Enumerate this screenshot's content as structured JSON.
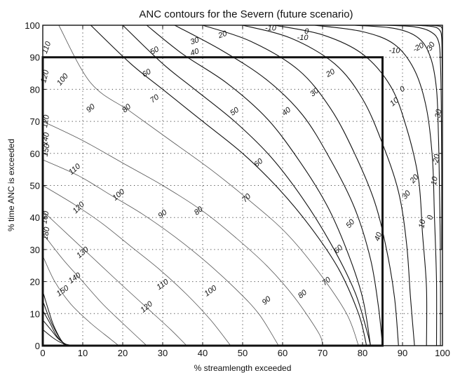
{
  "chart_data": {
    "type": "contour",
    "title": "ANC contours for the Severn (future scenario)",
    "xlabel": "% streamlength exceeded",
    "ylabel": "% time ANC is exceeded",
    "xlim": [
      0,
      100
    ],
    "ylim": [
      0,
      100
    ],
    "x_ticks": [
      "0",
      "10",
      "20",
      "30",
      "40",
      "50",
      "60",
      "70",
      "80",
      "90",
      "100"
    ],
    "y_ticks": [
      "0",
      "10",
      "20",
      "30",
      "40",
      "50",
      "60",
      "70",
      "80",
      "90",
      "100"
    ],
    "grid": true,
    "grid_style": "dotted",
    "highlight_box": {
      "x": [
        0,
        85
      ],
      "y": [
        0,
        90
      ]
    },
    "contours": [
      {
        "level": 150,
        "points": [
          [
            0,
            28
          ],
          [
            3,
            20
          ],
          [
            7,
            13
          ],
          [
            12,
            7
          ],
          [
            17,
            2
          ],
          [
            19,
            0
          ]
        ]
      },
      {
        "level": 140,
        "points": [
          [
            0,
            35
          ],
          [
            5,
            27
          ],
          [
            10,
            20
          ],
          [
            15,
            13
          ],
          [
            20,
            7
          ],
          [
            26,
            0
          ]
        ]
      },
      {
        "level": 130,
        "points": [
          [
            0,
            42
          ],
          [
            6,
            35
          ],
          [
            12,
            28
          ],
          [
            18,
            21
          ],
          [
            25,
            13
          ],
          [
            32,
            5
          ],
          [
            36,
            0
          ]
        ]
      },
      {
        "level": 120,
        "points": [
          [
            0,
            50
          ],
          [
            8,
            44
          ],
          [
            15,
            38
          ],
          [
            22,
            31
          ],
          [
            29,
            24
          ],
          [
            36,
            16
          ],
          [
            42,
            8
          ],
          [
            47,
            0
          ]
        ]
      },
      {
        "level": 110,
        "points": [
          [
            0,
            58
          ],
          [
            9,
            53
          ],
          [
            17,
            47
          ],
          [
            25,
            41
          ],
          [
            33,
            34
          ],
          [
            41,
            26
          ],
          [
            48,
            18
          ],
          [
            54,
            10
          ],
          [
            59,
            0
          ]
        ]
      },
      {
        "level": 100,
        "points": [
          [
            0,
            70
          ],
          [
            10,
            64
          ],
          [
            20,
            57
          ],
          [
            30,
            50
          ],
          [
            40,
            42
          ],
          [
            48,
            34
          ],
          [
            56,
            25
          ],
          [
            63,
            15
          ],
          [
            69,
            4
          ],
          [
            70,
            0
          ]
        ]
      },
      {
        "level": 90,
        "points": [
          [
            4,
            100
          ],
          [
            12,
            82
          ],
          [
            22,
            73
          ],
          [
            32,
            64
          ],
          [
            42,
            55
          ],
          [
            52,
            45
          ],
          [
            61,
            35
          ],
          [
            69,
            23
          ],
          [
            76,
            10
          ],
          [
            79,
            0
          ]
        ]
      },
      {
        "level": 80,
        "points": [
          [
            12,
            100
          ],
          [
            22,
            88
          ],
          [
            30,
            80
          ],
          [
            40,
            70
          ],
          [
            50,
            60
          ],
          [
            59,
            49
          ],
          [
            67,
            37
          ],
          [
            74,
            24
          ],
          [
            79,
            10
          ],
          [
            81,
            0
          ]
        ]
      },
      {
        "level": 70,
        "points": [
          [
            20,
            100
          ],
          [
            30,
            88
          ],
          [
            38,
            80
          ],
          [
            48,
            70
          ],
          [
            57,
            59
          ],
          [
            65,
            46
          ],
          [
            72,
            32
          ],
          [
            78,
            17
          ],
          [
            81,
            5
          ],
          [
            82,
            0
          ]
        ]
      },
      {
        "level": 60,
        "points": [
          [
            26,
            100
          ],
          [
            35,
            91
          ],
          [
            46,
            82
          ],
          [
            56,
            71
          ],
          [
            64,
            58
          ],
          [
            71,
            44
          ],
          [
            76,
            30
          ],
          [
            80,
            15
          ],
          [
            82,
            0
          ]
        ]
      },
      {
        "level": 50,
        "points": [
          [
            33,
            100
          ],
          [
            45,
            92
          ],
          [
            56,
            83
          ],
          [
            65,
            72
          ],
          [
            72,
            58
          ],
          [
            78,
            43
          ],
          [
            82,
            27
          ],
          [
            84,
            12
          ],
          [
            85,
            0
          ]
        ]
      },
      {
        "level": 40,
        "points": [
          [
            40,
            100
          ],
          [
            52,
            95
          ],
          [
            64,
            86
          ],
          [
            72,
            74
          ],
          [
            78,
            60
          ],
          [
            83,
            45
          ],
          [
            86,
            30
          ],
          [
            88,
            15
          ],
          [
            89,
            0
          ]
        ]
      },
      {
        "level": 30,
        "points": [
          [
            50,
            100
          ],
          [
            62,
            96
          ],
          [
            73,
            88
          ],
          [
            80,
            77
          ],
          [
            85,
            63
          ],
          [
            89,
            48
          ],
          [
            91,
            32
          ],
          [
            92,
            15
          ],
          [
            93,
            0
          ]
        ]
      },
      {
        "level": 20,
        "points": [
          [
            58,
            100
          ],
          [
            70,
            97
          ],
          [
            80,
            91
          ],
          [
            87,
            81
          ],
          [
            91,
            68
          ],
          [
            94,
            52
          ],
          [
            95,
            35
          ],
          [
            96,
            18
          ],
          [
            96,
            0
          ]
        ]
      },
      {
        "level": 10,
        "points": [
          [
            68,
            100
          ],
          [
            80,
            98
          ],
          [
            88,
            94
          ],
          [
            93,
            86
          ],
          [
            96,
            74
          ],
          [
            97.5,
            58
          ],
          [
            98,
            40
          ],
          [
            98.5,
            20
          ],
          [
            98.5,
            0
          ]
        ]
      },
      {
        "level": 0,
        "points": [
          [
            78,
            100
          ],
          [
            88,
            99
          ],
          [
            94,
            96
          ],
          [
            97,
            90
          ],
          [
            98.5,
            80
          ],
          [
            99,
            65
          ],
          [
            99.3,
            45
          ],
          [
            99.5,
            25
          ],
          [
            99.5,
            0
          ]
        ]
      },
      {
        "level": -10,
        "points": [
          [
            86,
            100
          ],
          [
            93,
            99.5
          ],
          [
            97,
            98
          ],
          [
            99,
            95
          ],
          [
            99.5,
            88
          ],
          [
            99.7,
            75
          ],
          [
            99.8,
            55
          ],
          [
            99.8,
            30
          ]
        ]
      },
      {
        "level": -20,
        "points": [
          [
            93,
            100
          ],
          [
            97.5,
            99.6
          ],
          [
            99.3,
            98.5
          ],
          [
            99.8,
            96
          ],
          [
            99.9,
            90
          ],
          [
            100,
            80
          ]
        ]
      },
      {
        "level": -30,
        "points": [
          [
            97,
            100
          ],
          [
            99.3,
            99.7
          ],
          [
            99.9,
            99
          ],
          [
            100,
            97
          ]
        ]
      }
    ],
    "corner_contours": [
      [
        [
          0,
          17
        ],
        [
          1.2,
          12
        ],
        [
          2.5,
          7
        ],
        [
          4,
          3
        ],
        [
          5.5,
          0
        ]
      ],
      [
        [
          0,
          14
        ],
        [
          1.5,
          9
        ],
        [
          3,
          5
        ],
        [
          4.7,
          1.5
        ],
        [
          6,
          0
        ]
      ],
      [
        [
          0,
          11
        ],
        [
          1.8,
          7
        ],
        [
          3.5,
          3
        ],
        [
          5.5,
          0.5
        ],
        [
          6.8,
          0
        ]
      ],
      [
        [
          0,
          8
        ],
        [
          2,
          5
        ],
        [
          4,
          2
        ],
        [
          6,
          0.3
        ],
        [
          7.3,
          0
        ]
      ],
      [
        [
          0,
          5
        ],
        [
          2.5,
          2.5
        ],
        [
          4.8,
          0.8
        ],
        [
          7.6,
          0
        ]
      ]
    ],
    "labels": [
      {
        "text": "150",
        "x": 5,
        "y": 17,
        "rot": -35
      },
      {
        "text": "140",
        "x": 8,
        "y": 21,
        "rot": -35
      },
      {
        "text": "130",
        "x": 10,
        "y": 29,
        "rot": -40
      },
      {
        "text": "120",
        "x": 9,
        "y": 43,
        "rot": -45
      },
      {
        "text": "110",
        "x": 8,
        "y": 55,
        "rot": -40
      },
      {
        "text": "100",
        "x": 19,
        "y": 47,
        "rot": -40
      },
      {
        "text": "90",
        "x": 30,
        "y": 41,
        "rot": -40
      },
      {
        "text": "80",
        "x": 39,
        "y": 42,
        "rot": -40
      },
      {
        "text": "70",
        "x": 51,
        "y": 46,
        "rot": -45
      },
      {
        "text": "60",
        "x": 54,
        "y": 57,
        "rot": -40
      },
      {
        "text": "50",
        "x": 48,
        "y": 73,
        "rot": -35
      },
      {
        "text": "40",
        "x": 61,
        "y": 73,
        "rot": -40
      },
      {
        "text": "30",
        "x": 68,
        "y": 79,
        "rot": -40
      },
      {
        "text": "20",
        "x": 72,
        "y": 85,
        "rot": -30
      },
      {
        "text": "10",
        "x": 88,
        "y": 76,
        "rot": -40
      },
      {
        "text": "0",
        "x": 90,
        "y": 80,
        "rot": -30
      },
      {
        "text": "-10",
        "x": 88,
        "y": 92,
        "rot": 0
      },
      {
        "text": "-20",
        "x": 94,
        "y": 93,
        "rot": -30
      },
      {
        "text": "-30",
        "x": 97,
        "y": 93,
        "rot": -60
      },
      {
        "text": "-10",
        "x": 57,
        "y": 99,
        "rot": 0
      },
      {
        "text": "0",
        "x": 66,
        "y": 98,
        "rot": 0
      },
      {
        "text": "-10",
        "x": 65,
        "y": 96,
        "rot": 0
      },
      {
        "text": "20",
        "x": 45,
        "y": 97,
        "rot": -20
      },
      {
        "text": "30",
        "x": 38,
        "y": 95,
        "rot": -20
      },
      {
        "text": "40",
        "x": 38,
        "y": 91.5,
        "rot": -20
      },
      {
        "text": "50",
        "x": 28,
        "y": 92,
        "rot": -30
      },
      {
        "text": "60",
        "x": 26,
        "y": 85,
        "rot": -30
      },
      {
        "text": "70",
        "x": 28,
        "y": 77,
        "rot": -35
      },
      {
        "text": "80",
        "x": 21,
        "y": 74,
        "rot": -40
      },
      {
        "text": "90",
        "x": 12,
        "y": 74,
        "rot": -40
      },
      {
        "text": "100",
        "x": 5,
        "y": 83,
        "rot": -50
      },
      {
        "text": "110",
        "x": 1,
        "y": 93,
        "rot": -70
      },
      {
        "text": "120",
        "x": 0.6,
        "y": 84,
        "rot": -75
      },
      {
        "text": "120",
        "x": 0.8,
        "y": 70,
        "rot": -80
      },
      {
        "text": "140",
        "x": 0.8,
        "y": 64.5,
        "rot": -80
      },
      {
        "text": "150",
        "x": 0.9,
        "y": 61,
        "rot": -80
      },
      {
        "text": "160",
        "x": 0.7,
        "y": 40,
        "rot": -80
      },
      {
        "text": "180",
        "x": 0.9,
        "y": 35,
        "rot": -80
      },
      {
        "text": "20",
        "x": 93,
        "y": 52,
        "rot": -50
      },
      {
        "text": "30",
        "x": 91,
        "y": 47,
        "rot": -50
      },
      {
        "text": "50",
        "x": 77,
        "y": 38,
        "rot": -50
      },
      {
        "text": "40",
        "x": 84,
        "y": 34,
        "rot": -70
      },
      {
        "text": "60",
        "x": 74,
        "y": 30,
        "rot": -45
      },
      {
        "text": "70",
        "x": 71,
        "y": 20,
        "rot": -40
      },
      {
        "text": "80",
        "x": 65,
        "y": 16,
        "rot": -40
      },
      {
        "text": "90",
        "x": 56,
        "y": 14,
        "rot": -40
      },
      {
        "text": "100",
        "x": 42,
        "y": 17,
        "rot": -35
      },
      {
        "text": "110",
        "x": 30,
        "y": 19,
        "rot": -35
      },
      {
        "text": "120",
        "x": 26,
        "y": 12,
        "rot": -40
      },
      {
        "text": "0",
        "x": 97,
        "y": 40,
        "rot": -80
      },
      {
        "text": "10",
        "x": 95,
        "y": 38,
        "rot": -80
      },
      {
        "text": "-10",
        "x": 98,
        "y": 51,
        "rot": -80
      },
      {
        "text": "-20",
        "x": 98.5,
        "y": 58,
        "rot": -80
      },
      {
        "text": "-30",
        "x": 99,
        "y": 72,
        "rot": -80
      }
    ]
  }
}
